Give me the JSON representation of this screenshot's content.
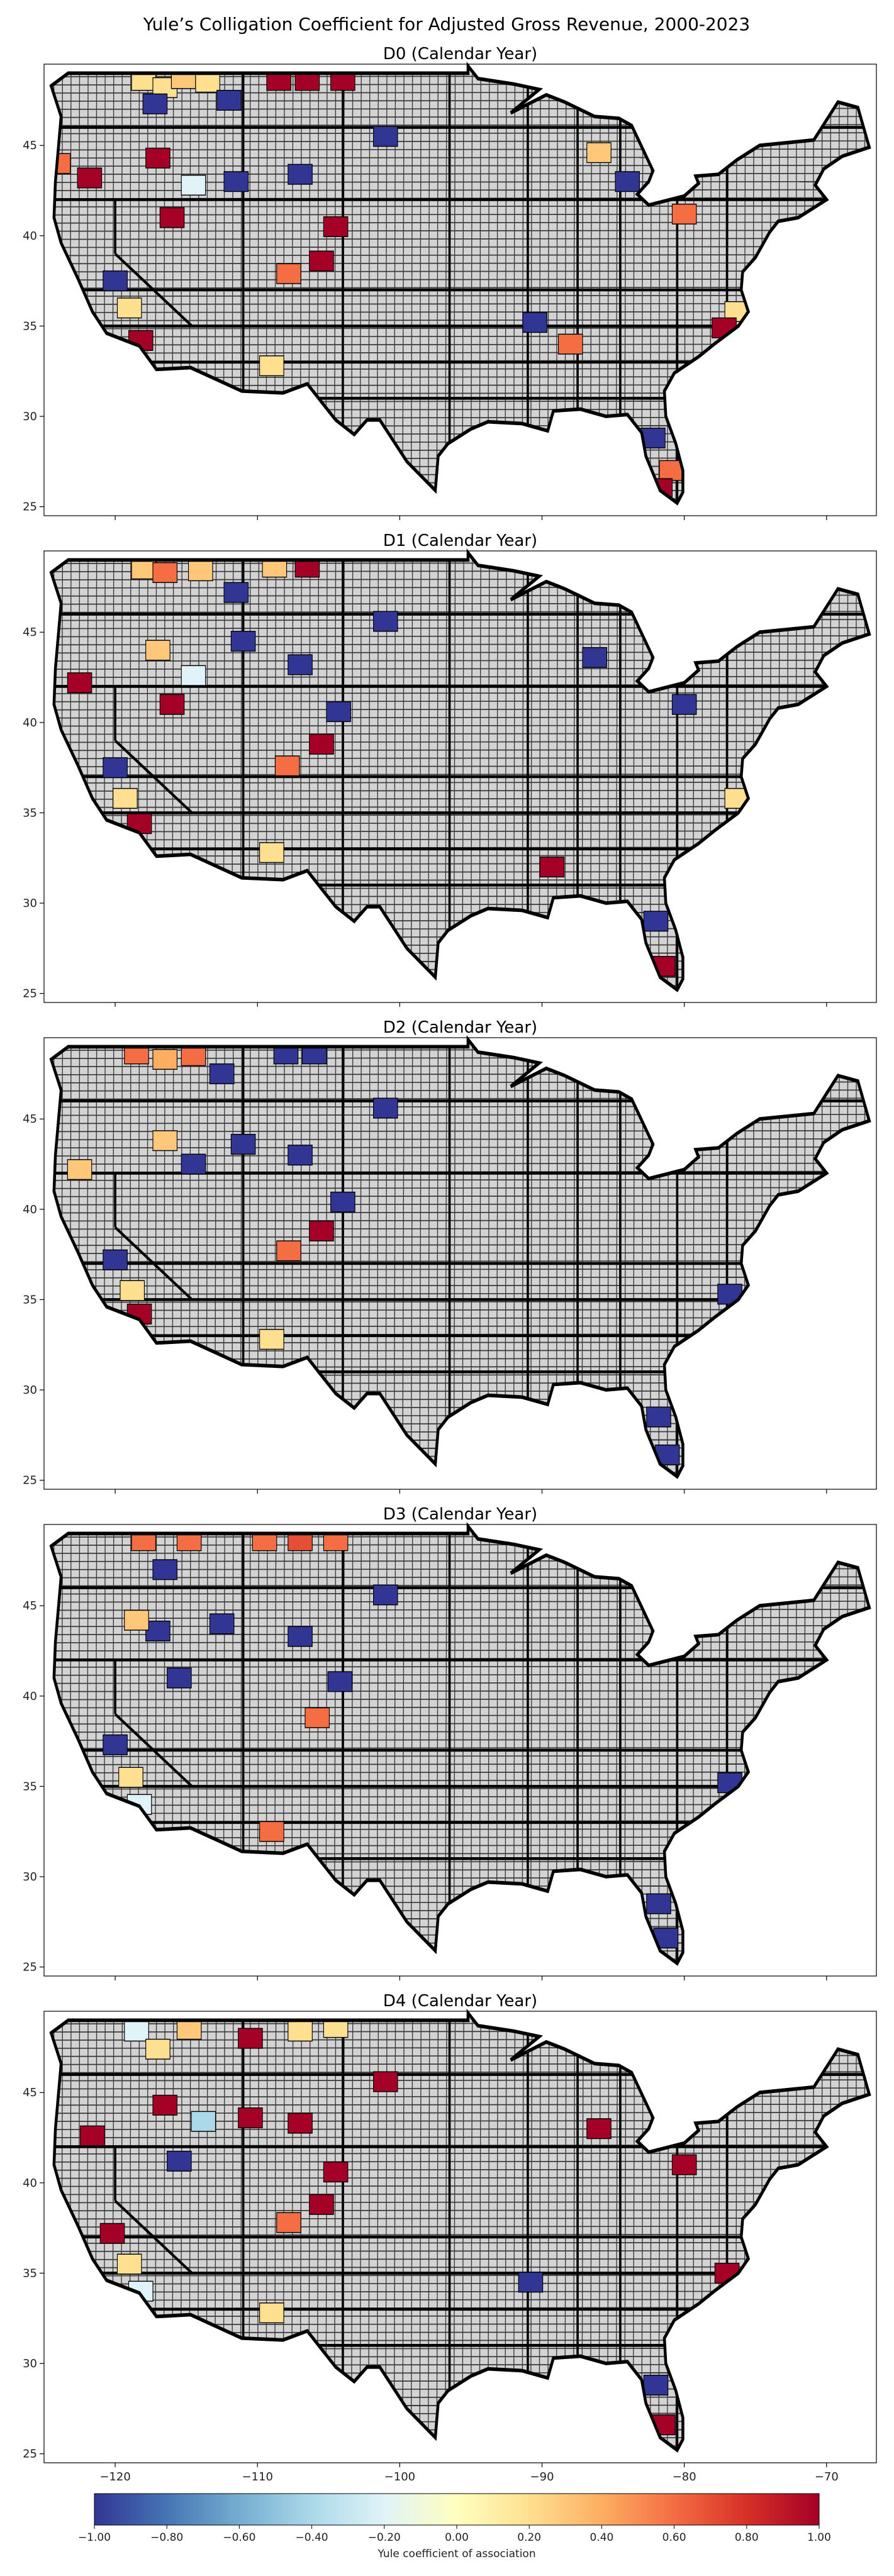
{
  "figure": {
    "title": "Yule’s Colligation Coefficient for Adjusted Gross Revenue, 2000-2023"
  },
  "chart_data": {
    "type": "choropleth",
    "axes": {
      "xlim": [
        -125,
        -66.5
      ],
      "ylim": [
        24.5,
        49.5
      ],
      "xticks": [
        -120,
        -110,
        -100,
        -90,
        -80,
        -70
      ],
      "xtick_labels": [
        "−120",
        "−110",
        "−100",
        "−90",
        "−80",
        "−70"
      ],
      "yticks": [
        25,
        30,
        35,
        40,
        45
      ],
      "ytick_labels": [
        "25",
        "30",
        "35",
        "40",
        "45"
      ],
      "grid": false
    },
    "panels": [
      {
        "title": "D0 (Calendar Year)",
        "regions": [
          {
            "lon": -118.0,
            "lat": 48.6,
            "v": 0.2
          },
          {
            "lon": -116.5,
            "lat": 48.2,
            "v": 0.2
          },
          {
            "lon": -115.2,
            "lat": 48.7,
            "v": 0.3
          },
          {
            "lon": -117.2,
            "lat": 47.3,
            "v": -1.0
          },
          {
            "lon": -113.5,
            "lat": 48.5,
            "v": 0.2
          },
          {
            "lon": -108.5,
            "lat": 48.6,
            "v": 1.0
          },
          {
            "lon": -106.5,
            "lat": 48.6,
            "v": 1.0
          },
          {
            "lon": -112.0,
            "lat": 47.5,
            "v": -1.0
          },
          {
            "lon": -121.8,
            "lat": 43.2,
            "v": 1.0
          },
          {
            "lon": -124.0,
            "lat": 44.0,
            "v": 0.6
          },
          {
            "lon": -117.0,
            "lat": 44.3,
            "v": 1.0
          },
          {
            "lon": -114.5,
            "lat": 42.8,
            "v": -0.2
          },
          {
            "lon": -116.0,
            "lat": 41.0,
            "v": 1.0
          },
          {
            "lon": -111.5,
            "lat": 43.0,
            "v": -1.0
          },
          {
            "lon": -107.0,
            "lat": 43.4,
            "v": -1.0
          },
          {
            "lon": -104.5,
            "lat": 40.5,
            "v": 1.0
          },
          {
            "lon": -105.5,
            "lat": 38.6,
            "v": 1.0
          },
          {
            "lon": -107.8,
            "lat": 37.9,
            "v": 0.6
          },
          {
            "lon": -120.0,
            "lat": 37.5,
            "v": -1.0
          },
          {
            "lon": -119.0,
            "lat": 36.0,
            "v": 0.2
          },
          {
            "lon": -118.2,
            "lat": 34.2,
            "v": 1.0
          },
          {
            "lon": -109.0,
            "lat": 32.8,
            "v": 0.2
          },
          {
            "lon": -104.0,
            "lat": 48.6,
            "v": 1.0
          },
          {
            "lon": -101.0,
            "lat": 45.5,
            "v": -1.0
          },
          {
            "lon": -86.0,
            "lat": 44.6,
            "v": 0.3
          },
          {
            "lon": -84.0,
            "lat": 43.0,
            "v": -1.0
          },
          {
            "lon": -80.0,
            "lat": 41.2,
            "v": 0.6
          },
          {
            "lon": -76.3,
            "lat": 35.8,
            "v": 0.2
          },
          {
            "lon": -77.2,
            "lat": 34.9,
            "v": 1.0
          },
          {
            "lon": -80.9,
            "lat": 27.0,
            "v": 0.6
          },
          {
            "lon": -81.7,
            "lat": 26.0,
            "v": 1.0
          },
          {
            "lon": -82.2,
            "lat": 28.8,
            "v": -1.0
          },
          {
            "lon": -90.5,
            "lat": 35.2,
            "v": -1.0
          },
          {
            "lon": -88.0,
            "lat": 34.0,
            "v": 0.6
          }
        ]
      },
      {
        "title": "D1 (Calendar Year)",
        "regions": [
          {
            "lon": -118.0,
            "lat": 48.5,
            "v": 0.3
          },
          {
            "lon": -116.5,
            "lat": 48.3,
            "v": 0.6
          },
          {
            "lon": -114.0,
            "lat": 48.4,
            "v": 0.3
          },
          {
            "lon": -108.8,
            "lat": 48.6,
            "v": 0.3
          },
          {
            "lon": -106.5,
            "lat": 48.6,
            "v": 1.0
          },
          {
            "lon": -111.5,
            "lat": 47.2,
            "v": -1.0
          },
          {
            "lon": -122.5,
            "lat": 42.2,
            "v": 1.0
          },
          {
            "lon": -117.0,
            "lat": 44.0,
            "v": 0.3
          },
          {
            "lon": -114.5,
            "lat": 42.6,
            "v": -0.2
          },
          {
            "lon": -116.0,
            "lat": 41.0,
            "v": 1.0
          },
          {
            "lon": -111.0,
            "lat": 44.5,
            "v": -1.0
          },
          {
            "lon": -107.0,
            "lat": 43.2,
            "v": -1.0
          },
          {
            "lon": -104.3,
            "lat": 40.6,
            "v": -1.0
          },
          {
            "lon": -105.5,
            "lat": 38.8,
            "v": 1.0
          },
          {
            "lon": -107.9,
            "lat": 37.6,
            "v": 0.6
          },
          {
            "lon": -120.0,
            "lat": 37.5,
            "v": -1.0
          },
          {
            "lon": -119.3,
            "lat": 35.8,
            "v": 0.2
          },
          {
            "lon": -118.3,
            "lat": 34.4,
            "v": 1.0
          },
          {
            "lon": -109.0,
            "lat": 32.8,
            "v": 0.2
          },
          {
            "lon": -101.0,
            "lat": 45.6,
            "v": -1.0
          },
          {
            "lon": -86.3,
            "lat": 43.6,
            "v": -1.0
          },
          {
            "lon": -80.0,
            "lat": 41.0,
            "v": -1.0
          },
          {
            "lon": -76.3,
            "lat": 35.8,
            "v": 0.2
          },
          {
            "lon": -81.5,
            "lat": 26.5,
            "v": 1.0
          },
          {
            "lon": -82.0,
            "lat": 29.0,
            "v": -1.0
          },
          {
            "lon": -89.3,
            "lat": 32.0,
            "v": 1.0
          }
        ]
      },
      {
        "title": "D2 (Calendar Year)",
        "regions": [
          {
            "lon": -118.5,
            "lat": 48.6,
            "v": 0.6
          },
          {
            "lon": -116.5,
            "lat": 48.3,
            "v": 0.4
          },
          {
            "lon": -114.5,
            "lat": 48.5,
            "v": 0.6
          },
          {
            "lon": -112.5,
            "lat": 47.5,
            "v": -1.0
          },
          {
            "lon": -108.0,
            "lat": 48.6,
            "v": -1.0
          },
          {
            "lon": -106.0,
            "lat": 48.6,
            "v": -1.0
          },
          {
            "lon": -116.5,
            "lat": 43.8,
            "v": 0.3
          },
          {
            "lon": -122.5,
            "lat": 42.2,
            "v": 0.3
          },
          {
            "lon": -114.5,
            "lat": 42.5,
            "v": -1.0
          },
          {
            "lon": -111.0,
            "lat": 43.6,
            "v": -1.0
          },
          {
            "lon": -107.0,
            "lat": 43.0,
            "v": -1.0
          },
          {
            "lon": -104.0,
            "lat": 40.4,
            "v": -1.0
          },
          {
            "lon": -105.5,
            "lat": 38.8,
            "v": 1.0
          },
          {
            "lon": -107.8,
            "lat": 37.7,
            "v": 0.6
          },
          {
            "lon": -120.0,
            "lat": 37.2,
            "v": -1.0
          },
          {
            "lon": -118.8,
            "lat": 35.5,
            "v": 0.2
          },
          {
            "lon": -118.3,
            "lat": 34.2,
            "v": 1.0
          },
          {
            "lon": -109.0,
            "lat": 32.8,
            "v": 0.2
          },
          {
            "lon": -101.0,
            "lat": 45.6,
            "v": -1.0
          },
          {
            "lon": -76.8,
            "lat": 35.3,
            "v": -1.0
          },
          {
            "lon": -81.8,
            "lat": 28.5,
            "v": -1.0
          },
          {
            "lon": -81.2,
            "lat": 26.4,
            "v": -1.0
          }
        ]
      },
      {
        "title": "D3 (Calendar Year)",
        "regions": [
          {
            "lon": -118.0,
            "lat": 48.6,
            "v": 0.6
          },
          {
            "lon": -114.8,
            "lat": 48.6,
            "v": 0.6
          },
          {
            "lon": -116.5,
            "lat": 47.0,
            "v": -1.0
          },
          {
            "lon": -109.5,
            "lat": 48.6,
            "v": 0.6
          },
          {
            "lon": -107.0,
            "lat": 48.6,
            "v": 0.7
          },
          {
            "lon": -104.5,
            "lat": 48.6,
            "v": 0.6
          },
          {
            "lon": -117.0,
            "lat": 43.6,
            "v": -1.0
          },
          {
            "lon": -112.5,
            "lat": 44.0,
            "v": -1.0
          },
          {
            "lon": -118.5,
            "lat": 44.2,
            "v": 0.3
          },
          {
            "lon": -107.0,
            "lat": 43.3,
            "v": -1.0
          },
          {
            "lon": -115.5,
            "lat": 41.0,
            "v": -1.0
          },
          {
            "lon": -104.2,
            "lat": 40.8,
            "v": -1.0
          },
          {
            "lon": -105.8,
            "lat": 38.8,
            "v": 0.6
          },
          {
            "lon": -120.0,
            "lat": 37.3,
            "v": -1.0
          },
          {
            "lon": -118.9,
            "lat": 35.5,
            "v": 0.2
          },
          {
            "lon": -118.3,
            "lat": 34.0,
            "v": -0.2
          },
          {
            "lon": -109.0,
            "lat": 32.5,
            "v": 0.6
          },
          {
            "lon": -101.0,
            "lat": 45.6,
            "v": -1.0
          },
          {
            "lon": -76.8,
            "lat": 35.2,
            "v": -1.0
          },
          {
            "lon": -81.8,
            "lat": 28.5,
            "v": -1.0
          },
          {
            "lon": -81.3,
            "lat": 26.6,
            "v": -1.0
          }
        ]
      },
      {
        "title": "D4 (Calendar Year)",
        "regions": [
          {
            "lon": -118.5,
            "lat": 48.4,
            "v": -0.2
          },
          {
            "lon": -117.0,
            "lat": 47.4,
            "v": 0.2
          },
          {
            "lon": -114.8,
            "lat": 48.5,
            "v": 0.3
          },
          {
            "lon": -110.5,
            "lat": 48.0,
            "v": 1.0
          },
          {
            "lon": -107.0,
            "lat": 48.4,
            "v": 0.2
          },
          {
            "lon": -104.5,
            "lat": 48.6,
            "v": 0.2
          },
          {
            "lon": -116.5,
            "lat": 44.3,
            "v": 1.0
          },
          {
            "lon": -113.8,
            "lat": 43.4,
            "v": -0.4
          },
          {
            "lon": -110.5,
            "lat": 43.6,
            "v": 1.0
          },
          {
            "lon": -107.0,
            "lat": 43.3,
            "v": 1.0
          },
          {
            "lon": -121.6,
            "lat": 42.6,
            "v": 1.0
          },
          {
            "lon": -115.5,
            "lat": 41.2,
            "v": -1.0
          },
          {
            "lon": -104.5,
            "lat": 40.6,
            "v": 1.0
          },
          {
            "lon": -105.5,
            "lat": 38.8,
            "v": 1.0
          },
          {
            "lon": -107.8,
            "lat": 37.8,
            "v": 0.6
          },
          {
            "lon": -120.2,
            "lat": 37.2,
            "v": 1.0
          },
          {
            "lon": -119.0,
            "lat": 35.5,
            "v": 0.2
          },
          {
            "lon": -118.2,
            "lat": 34.0,
            "v": -0.2
          },
          {
            "lon": -109.0,
            "lat": 32.8,
            "v": 0.2
          },
          {
            "lon": -101.0,
            "lat": 45.6,
            "v": 1.0
          },
          {
            "lon": -86.0,
            "lat": 43.0,
            "v": 1.0
          },
          {
            "lon": -80.0,
            "lat": 41.0,
            "v": 1.0
          },
          {
            "lon": -77.0,
            "lat": 35.0,
            "v": 1.0
          },
          {
            "lon": -81.5,
            "lat": 26.6,
            "v": 1.0
          },
          {
            "lon": -82.0,
            "lat": 28.8,
            "v": -1.0
          },
          {
            "lon": -90.8,
            "lat": 34.5,
            "v": -1.0
          }
        ]
      }
    ],
    "colorbar": {
      "colormap": "RdYlBu_r",
      "range": [
        -1.0,
        1.0
      ],
      "ticks": [
        -1.0,
        -0.8,
        -0.6,
        -0.4,
        -0.2,
        0.0,
        0.2,
        0.4,
        0.6,
        0.8,
        1.0
      ],
      "tick_labels": [
        "−1.00",
        "−0.80",
        "−0.60",
        "−0.40",
        "−0.20",
        "0.00",
        "0.20",
        "0.40",
        "0.60",
        "0.80",
        "1.00"
      ],
      "label": "Yule coefficient of association"
    },
    "no_data_color": "#d3d3d3",
    "border_color": "#000000"
  }
}
